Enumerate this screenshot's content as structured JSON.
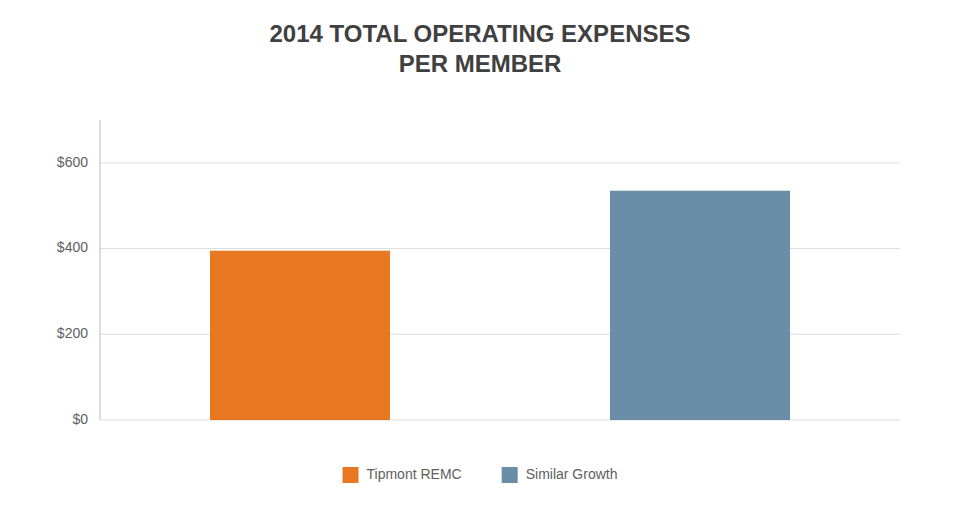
{
  "chart_data": {
    "type": "bar",
    "title": "2014 TOTAL OPERATING EXPENSES\nPER MEMBER",
    "categories": [
      "Tipmont REMC",
      "Similar Growth"
    ],
    "values": [
      395,
      535
    ],
    "colors": [
      "#E87722",
      "#6B8EA8"
    ],
    "ylim": [
      0,
      700
    ],
    "yticks": [
      {
        "value": 0,
        "label": "$0"
      },
      {
        "value": 200,
        "label": "$200"
      },
      {
        "value": 400,
        "label": "$400"
      },
      {
        "value": 600,
        "label": "$600"
      }
    ],
    "grid": true,
    "legend": "bottom",
    "tick_labels": "y"
  }
}
